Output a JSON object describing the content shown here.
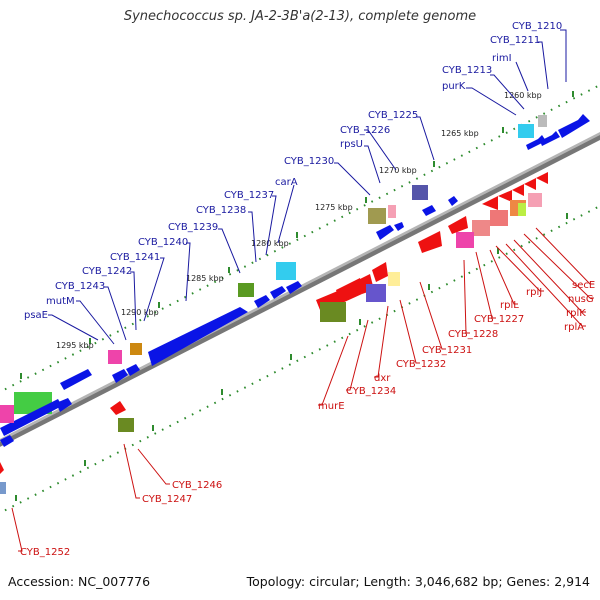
{
  "title": "Synechococcus sp. JA-2-3B'a(2-13), complete genome",
  "footer": {
    "accession": "Accession: NC_007776",
    "summary": "Topology: circular; Length: 3,046,682 bp; Genes: 2,914"
  },
  "colors": {
    "top_label": "#1a1aa0",
    "bottom_label": "#cc1111",
    "backbone": "#888888",
    "dots": "#2e8b2e",
    "forward_gene": "#0a14e6",
    "reverse_gene": "#ee1111"
  },
  "kbp_marks": [
    "1260 kbp",
    "1265 kbp",
    "1270 kbp",
    "1275 kbp",
    "1280 kbp",
    "1285 kbp",
    "1290 kbp",
    "1295 kbp"
  ],
  "top_labels": [
    "CYB_1210",
    "CYB_1211",
    "rimI",
    "CYB_1213",
    "purK",
    "CYB_1225",
    "CYB_1226",
    "rpsU",
    "CYB_1230",
    "carA",
    "CYB_1237",
    "CYB_1238",
    "CYB_1239",
    "CYB_1240",
    "CYB_1241",
    "CYB_1242",
    "CYB_1243",
    "mutM",
    "psaE"
  ],
  "bottom_labels": [
    "secE",
    "nusG",
    "rplK",
    "rplA",
    "rplJ",
    "rplL",
    "CYB_1227",
    "CYB_1228",
    "CYB_1231",
    "CYB_1232",
    "dxr",
    "CYB_1234",
    "murE",
    "CYB_1246",
    "CYB_1247",
    "CYB_1252"
  ]
}
